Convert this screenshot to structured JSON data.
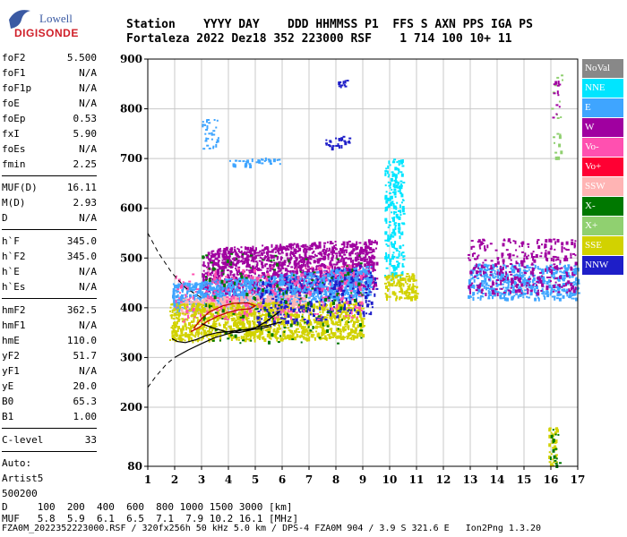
{
  "logo": {
    "line1": "Lowell",
    "line2": "DIGISONDE"
  },
  "header": {
    "line1": "Station    YYYY DAY    DDD HHMMSS P1  FFS S AXN PPS IGA PS",
    "line2": "Fortaleza 2022 Dez18 352 223000 RSF    1 714 100 10+ 11"
  },
  "params": [
    [
      "foF2",
      "5.500"
    ],
    [
      "foF1",
      "N/A"
    ],
    [
      "foF1p",
      "N/A"
    ],
    [
      "foE",
      "N/A"
    ],
    [
      "foEp",
      "0.53"
    ],
    [
      "fxI",
      "5.90"
    ],
    [
      "foEs",
      "N/A"
    ],
    [
      "fmin",
      "2.25"
    ],
    "sep",
    [
      "MUF(D)",
      "16.11"
    ],
    [
      "M(D)",
      "2.93"
    ],
    [
      "D",
      "N/A"
    ],
    "sep",
    [
      "h`F",
      "345.0"
    ],
    [
      "h`F2",
      "345.0"
    ],
    [
      "h`E",
      "N/A"
    ],
    [
      "h`Es",
      "N/A"
    ],
    "sep",
    [
      "hmF2",
      "362.5"
    ],
    [
      "hmF1",
      "N/A"
    ],
    [
      "hmE",
      "110.0"
    ],
    [
      "yF2",
      "51.7"
    ],
    [
      "yF1",
      "N/A"
    ],
    [
      "yE",
      "20.0"
    ],
    [
      "B0",
      "65.3"
    ],
    [
      "B1",
      "1.00"
    ],
    "sep",
    [
      "C-level",
      "33"
    ],
    "sep",
    [
      "Auto:",
      ""
    ],
    [
      "Artist5",
      ""
    ],
    [
      "500200",
      ""
    ]
  ],
  "legend": [
    {
      "label": "NoVal",
      "color": "#888888"
    },
    {
      "label": "NNE",
      "color": "#00e5ff"
    },
    {
      "label": "E",
      "color": "#3fa5ff"
    },
    {
      "label": "W",
      "color": "#a000a0"
    },
    {
      "label": "Vo-",
      "color": "#ff50b0"
    },
    {
      "label": "Vo+",
      "color": "#ff0033"
    },
    {
      "label": "SSW",
      "color": "#ffb4b4"
    },
    {
      "label": "X-",
      "color": "#007800"
    },
    {
      "label": "X+",
      "color": "#90d070"
    },
    {
      "label": "SSE",
      "color": "#d2d200"
    },
    {
      "label": "NNW",
      "color": "#1e1ec8"
    }
  ],
  "footer": {
    "d_row": "D     100  200  400  600  800 1000 1500 3000 [km]",
    "muf_row": "MUF   5.8  5.9  6.1  6.5  7.1  7.9 10.2 16.1 [MHz]",
    "file_line": "FZA0M_2022352223000.RSF / 320fx256h 50 kHz 5.0 km / DPS-4 FZA0M 904 / 3.9 S 321.6 E   Ion2Png 1.3.20"
  },
  "chart_data": {
    "type": "scatter",
    "xlim": [
      1,
      17
    ],
    "ylim": [
      80,
      900
    ],
    "x_ticks": [
      1,
      2,
      3,
      4,
      5,
      6,
      7,
      8,
      9,
      10,
      11,
      12,
      13,
      14,
      15,
      16,
      17
    ],
    "y_ticks": [
      80,
      200,
      300,
      400,
      500,
      600,
      700,
      800,
      900
    ],
    "grid": true,
    "legend_position": "right",
    "clusters": [
      {
        "color": "#a000a0",
        "x": [
          3.0,
          9.5
        ],
        "y": [
          420,
          520
        ],
        "density": 1400,
        "slope": 20
      },
      {
        "color": "#3fa5ff",
        "x": [
          1.9,
          9.3
        ],
        "y": [
          390,
          450
        ],
        "density": 1100,
        "slope": 35
      },
      {
        "color": "#ffb4b4",
        "x": [
          2.2,
          7.0
        ],
        "y": [
          385,
          420
        ],
        "density": 400,
        "slope": 10
      },
      {
        "color": "#d2d200",
        "x": [
          1.8,
          9.0
        ],
        "y": [
          335,
          410
        ],
        "density": 1200,
        "slope": 5
      },
      {
        "color": "#1e1ec8",
        "x": [
          5.0,
          9.5
        ],
        "y": [
          360,
          460
        ],
        "density": 250,
        "slope": 30
      },
      {
        "color": "#ff50b0",
        "x": [
          2.0,
          9.0
        ],
        "y": [
          370,
          480
        ],
        "density": 250,
        "slope": 10
      },
      {
        "color": "#007800",
        "x": [
          3.0,
          9.0
        ],
        "y": [
          330,
          510
        ],
        "density": 150,
        "slope": 0
      },
      {
        "color": "#00e5ff",
        "x": [
          9.8,
          10.5
        ],
        "y": [
          460,
          700
        ],
        "density": 220,
        "slope": 0
      },
      {
        "color": "#3fa5ff",
        "x": [
          12.9,
          17.0
        ],
        "y": [
          420,
          490
        ],
        "density": 520,
        "slope": 0
      },
      {
        "color": "#a000a0",
        "x": [
          12.9,
          16.9
        ],
        "y": [
          430,
          540
        ],
        "density": 320,
        "slope": 0
      },
      {
        "color": "#d2d200",
        "x": [
          9.8,
          11.0
        ],
        "y": [
          420,
          470
        ],
        "density": 120,
        "slope": 0
      },
      {
        "color": "#3fa5ff",
        "x": [
          3.0,
          3.6
        ],
        "y": [
          720,
          780
        ],
        "density": 30,
        "slope": 0
      },
      {
        "color": "#3fa5ff",
        "x": [
          4.0,
          5.9
        ],
        "y": [
          685,
          700
        ],
        "density": 35,
        "slope": 5
      },
      {
        "color": "#1e1ec8",
        "x": [
          7.6,
          8.5
        ],
        "y": [
          720,
          740
        ],
        "density": 25,
        "slope": 8
      },
      {
        "color": "#1e1ec8",
        "x": [
          8.0,
          8.4
        ],
        "y": [
          845,
          860
        ],
        "density": 10,
        "slope": 0
      },
      {
        "color": "#d2d200",
        "x": [
          15.9,
          16.2
        ],
        "y": [
          80,
          160
        ],
        "density": 35,
        "slope": 0
      },
      {
        "color": "#007800",
        "x": [
          15.9,
          16.3
        ],
        "y": [
          80,
          160
        ],
        "density": 15,
        "slope": 0
      },
      {
        "color": "#90d070",
        "x": [
          16.0,
          16.4
        ],
        "y": [
          700,
          870
        ],
        "density": 20,
        "slope": 0
      },
      {
        "color": "#a000a0",
        "x": [
          16.0,
          16.3
        ],
        "y": [
          780,
          860
        ],
        "density": 12,
        "slope": 0
      }
    ],
    "profile_curve": {
      "x": [
        1.9,
        2.1,
        2.4,
        2.8,
        3.2,
        3.6,
        4.0,
        4.4,
        4.8,
        5.2,
        5.5
      ],
      "y": [
        338,
        332,
        330,
        336,
        345,
        350,
        352,
        355,
        356,
        358,
        362
      ]
    },
    "red_curve": {
      "x": [
        2.6,
        2.9,
        3.2,
        3.6,
        4.0,
        4.4,
        4.8,
        5.0,
        4.7,
        4.2,
        3.8,
        3.3,
        3.0,
        2.7
      ],
      "y": [
        352,
        360,
        372,
        383,
        391,
        396,
        398,
        404,
        410,
        409,
        404,
        392,
        378,
        358
      ]
    },
    "black_lower_curve": {
      "x": [
        3.0,
        3.4,
        3.9,
        4.4,
        4.9,
        5.4,
        5.9
      ],
      "y": [
        368,
        360,
        352,
        350,
        356,
        372,
        392
      ]
    },
    "dashed_upper": {
      "x": [
        1.0,
        1.4,
        1.9,
        2.4,
        3.0
      ],
      "y": [
        550,
        510,
        470,
        440,
        420
      ]
    },
    "dashed_lower": {
      "x": [
        1.0,
        1.3,
        1.7,
        2.0
      ],
      "y": [
        240,
        262,
        287,
        300
      ]
    },
    "solid_lower": {
      "x": [
        2.0,
        2.5,
        3.0,
        3.5,
        4.0,
        4.5,
        5.0,
        5.5,
        6.0
      ],
      "y": [
        300,
        315,
        328,
        340,
        348,
        355,
        360,
        365,
        372
      ]
    }
  }
}
